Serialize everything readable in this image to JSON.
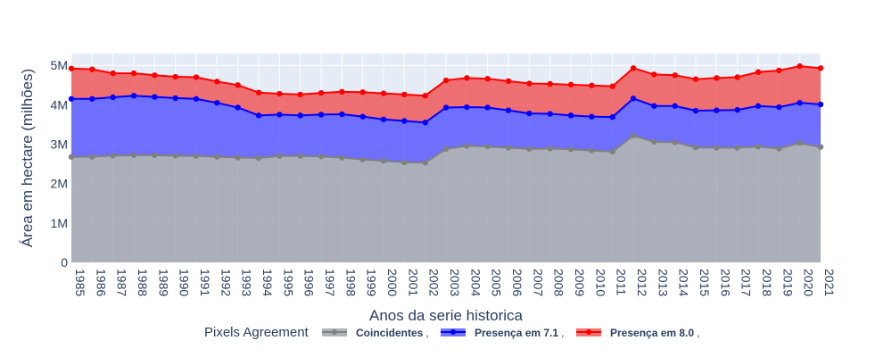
{
  "chart_data": {
    "type": "area",
    "stacked": true,
    "xlabel": "Anos da serie historica",
    "ylabel": "Área em hectare (milhões)",
    "ylim": [
      0,
      5300000
    ],
    "yticks": [
      {
        "value": 0,
        "label": "0"
      },
      {
        "value": 1000000,
        "label": "1M"
      },
      {
        "value": 2000000,
        "label": "2M"
      },
      {
        "value": 3000000,
        "label": "3M"
      },
      {
        "value": 4000000,
        "label": "4M"
      },
      {
        "value": 5000000,
        "label": "5M"
      }
    ],
    "grid": true,
    "legend_position": "bottom",
    "legend_title": "Pixels Agreement",
    "x": [
      "1985",
      "1986",
      "1987",
      "1988",
      "1989",
      "1990",
      "1991",
      "1992",
      "1993",
      "1994",
      "1995",
      "1996",
      "1997",
      "1998",
      "1999",
      "2000",
      "2001",
      "2002",
      "2003",
      "2004",
      "2005",
      "2006",
      "2007",
      "2008",
      "2009",
      "2010",
      "2011",
      "2012",
      "2013",
      "2014",
      "2015",
      "2016",
      "2017",
      "2018",
      "2019",
      "2020",
      "2021"
    ],
    "series": [
      {
        "name": "Coincidentes",
        "color": "#808080",
        "fill": "rgba(150,155,165,0.75)",
        "values": [
          2680000,
          2680000,
          2710000,
          2720000,
          2720000,
          2710000,
          2700000,
          2680000,
          2660000,
          2650000,
          2700000,
          2700000,
          2690000,
          2660000,
          2610000,
          2580000,
          2540000,
          2530000,
          2880000,
          2960000,
          2940000,
          2910000,
          2880000,
          2890000,
          2870000,
          2840000,
          2810000,
          3220000,
          3060000,
          3050000,
          2920000,
          2910000,
          2910000,
          2940000,
          2890000,
          3030000,
          2930000
        ]
      },
      {
        "name": "Presença em 7.1",
        "color": "#0000ff",
        "fill": "rgba(80,80,255,0.8)",
        "values": [
          4150000,
          4150000,
          4190000,
          4230000,
          4200000,
          4170000,
          4150000,
          4050000,
          3930000,
          3730000,
          3750000,
          3730000,
          3750000,
          3760000,
          3700000,
          3630000,
          3590000,
          3550000,
          3930000,
          3940000,
          3930000,
          3860000,
          3780000,
          3770000,
          3730000,
          3700000,
          3690000,
          4160000,
          3970000,
          3970000,
          3850000,
          3860000,
          3870000,
          3970000,
          3940000,
          4050000,
          4010000
        ]
      },
      {
        "name": "Presença em 8.0",
        "color": "#ff0000",
        "fill": "rgba(240,80,80,0.8)",
        "values": [
          4920000,
          4900000,
          4800000,
          4800000,
          4750000,
          4710000,
          4700000,
          4590000,
          4500000,
          4310000,
          4280000,
          4260000,
          4300000,
          4330000,
          4320000,
          4290000,
          4260000,
          4230000,
          4620000,
          4680000,
          4660000,
          4600000,
          4540000,
          4530000,
          4510000,
          4490000,
          4470000,
          4930000,
          4770000,
          4750000,
          4650000,
          4680000,
          4700000,
          4830000,
          4870000,
          4980000,
          4930000
        ]
      }
    ]
  }
}
